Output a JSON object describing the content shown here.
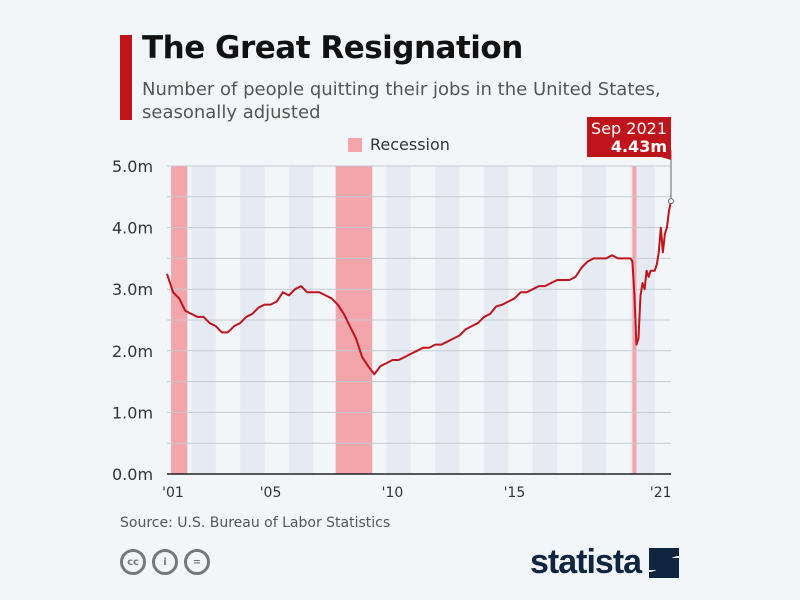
{
  "title": "The Great Resignation",
  "subtitle": "Number of people quitting their jobs in the United States, seasonally adjusted",
  "source": "Source: U.S. Bureau of Labor Statistics",
  "logo": "statista",
  "license_icons": [
    "cc-icon",
    "attribution-icon",
    "no-derivatives-icon"
  ],
  "colors": {
    "line": "#c0141c",
    "recession": "#f2a5ab",
    "accent": "#c0141c",
    "logo": "#0f2540"
  },
  "chart_data": {
    "type": "line",
    "title": "The Great Resignation",
    "ylim": [
      0,
      5
    ],
    "yticks": [
      0,
      1,
      2,
      3,
      4,
      5
    ],
    "ytick_labels": [
      "0.0m",
      "1.0m",
      "2.0m",
      "3.0m",
      "4.0m",
      "5.0m"
    ],
    "xlim": [
      "2001-01",
      "2021-09"
    ],
    "xtick_labels": [
      {
        "label": "'01",
        "date": "2001-01"
      },
      {
        "label": "'05",
        "date": "2005-01"
      },
      {
        "label": "'10",
        "date": "2010-01"
      },
      {
        "label": "'15",
        "date": "2015-01"
      },
      {
        "label": "'21",
        "date": "2021-01"
      }
    ],
    "grid": true,
    "legend": {
      "label": "Recession",
      "placement": "top-center"
    },
    "recessions": [
      [
        "2001-03",
        "2001-11"
      ],
      [
        "2007-12",
        "2009-06"
      ],
      [
        "2020-02",
        "2020-04"
      ]
    ],
    "annotation": {
      "date": "Sep 2021",
      "value": "4.43m"
    },
    "series": [
      {
        "unit": "millions",
        "points": [
          [
            "2001-01",
            3.25
          ],
          [
            "2001-04",
            2.95
          ],
          [
            "2001-07",
            2.85
          ],
          [
            "2001-10",
            2.65
          ],
          [
            "2002-01",
            2.6
          ],
          [
            "2002-04",
            2.55
          ],
          [
            "2002-07",
            2.55
          ],
          [
            "2002-10",
            2.45
          ],
          [
            "2003-01",
            2.4
          ],
          [
            "2003-04",
            2.3
          ],
          [
            "2003-07",
            2.3
          ],
          [
            "2003-10",
            2.4
          ],
          [
            "2004-01",
            2.45
          ],
          [
            "2004-04",
            2.55
          ],
          [
            "2004-07",
            2.6
          ],
          [
            "2004-10",
            2.7
          ],
          [
            "2005-01",
            2.75
          ],
          [
            "2005-04",
            2.75
          ],
          [
            "2005-07",
            2.8
          ],
          [
            "2005-10",
            2.95
          ],
          [
            "2006-01",
            2.9
          ],
          [
            "2006-04",
            3.0
          ],
          [
            "2006-07",
            3.05
          ],
          [
            "2006-10",
            2.95
          ],
          [
            "2007-01",
            2.95
          ],
          [
            "2007-04",
            2.95
          ],
          [
            "2007-07",
            2.9
          ],
          [
            "2007-10",
            2.85
          ],
          [
            "2008-01",
            2.75
          ],
          [
            "2008-04",
            2.6
          ],
          [
            "2008-07",
            2.4
          ],
          [
            "2008-10",
            2.2
          ],
          [
            "2009-01",
            1.9
          ],
          [
            "2009-04",
            1.75
          ],
          [
            "2009-07",
            1.62
          ],
          [
            "2009-10",
            1.75
          ],
          [
            "2010-01",
            1.8
          ],
          [
            "2010-04",
            1.85
          ],
          [
            "2010-07",
            1.85
          ],
          [
            "2010-10",
            1.9
          ],
          [
            "2011-01",
            1.95
          ],
          [
            "2011-04",
            2.0
          ],
          [
            "2011-07",
            2.05
          ],
          [
            "2011-10",
            2.05
          ],
          [
            "2012-01",
            2.1
          ],
          [
            "2012-04",
            2.1
          ],
          [
            "2012-07",
            2.15
          ],
          [
            "2012-10",
            2.2
          ],
          [
            "2013-01",
            2.25
          ],
          [
            "2013-04",
            2.35
          ],
          [
            "2013-07",
            2.4
          ],
          [
            "2013-10",
            2.45
          ],
          [
            "2014-01",
            2.55
          ],
          [
            "2014-04",
            2.6
          ],
          [
            "2014-07",
            2.72
          ],
          [
            "2014-10",
            2.75
          ],
          [
            "2015-01",
            2.8
          ],
          [
            "2015-04",
            2.85
          ],
          [
            "2015-07",
            2.95
          ],
          [
            "2015-10",
            2.95
          ],
          [
            "2016-01",
            3.0
          ],
          [
            "2016-04",
            3.05
          ],
          [
            "2016-07",
            3.05
          ],
          [
            "2016-10",
            3.1
          ],
          [
            "2017-01",
            3.15
          ],
          [
            "2017-04",
            3.15
          ],
          [
            "2017-07",
            3.15
          ],
          [
            "2017-10",
            3.2
          ],
          [
            "2018-01",
            3.35
          ],
          [
            "2018-04",
            3.45
          ],
          [
            "2018-07",
            3.5
          ],
          [
            "2018-10",
            3.5
          ],
          [
            "2019-01",
            3.5
          ],
          [
            "2019-04",
            3.55
          ],
          [
            "2019-07",
            3.5
          ],
          [
            "2019-10",
            3.5
          ],
          [
            "2020-01",
            3.5
          ],
          [
            "2020-02",
            3.45
          ],
          [
            "2020-03",
            2.9
          ],
          [
            "2020-04",
            2.1
          ],
          [
            "2020-05",
            2.2
          ],
          [
            "2020-06",
            2.9
          ],
          [
            "2020-07",
            3.1
          ],
          [
            "2020-08",
            3.0
          ],
          [
            "2020-09",
            3.3
          ],
          [
            "2020-10",
            3.2
          ],
          [
            "2020-11",
            3.3
          ],
          [
            "2020-12",
            3.3
          ],
          [
            "2021-01",
            3.3
          ],
          [
            "2021-02",
            3.4
          ],
          [
            "2021-03",
            3.6
          ],
          [
            "2021-04",
            4.0
          ],
          [
            "2021-05",
            3.6
          ],
          [
            "2021-06",
            3.9
          ],
          [
            "2021-07",
            4.0
          ],
          [
            "2021-08",
            4.27
          ],
          [
            "2021-09",
            4.43
          ]
        ]
      }
    ]
  }
}
